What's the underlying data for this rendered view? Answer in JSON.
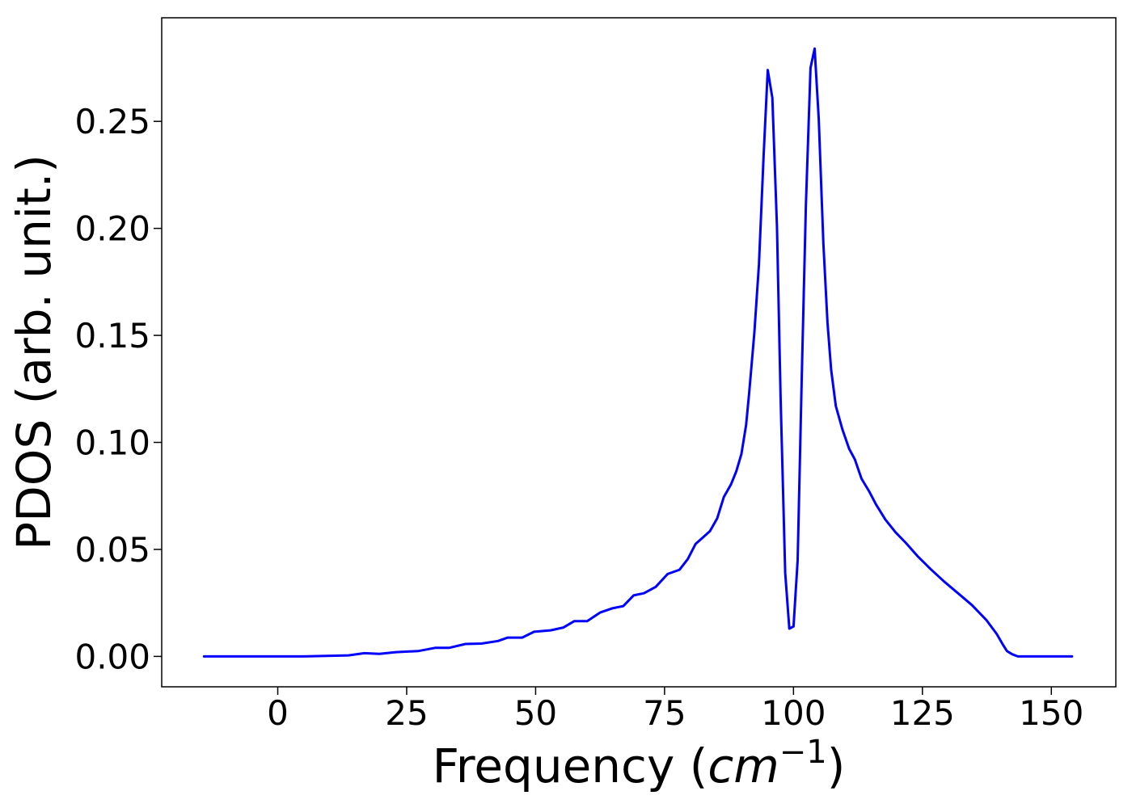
{
  "chart_data": {
    "type": "line",
    "title": "",
    "xlabel": "Frequency",
    "xlabel_unit": "cm",
    "xlabel_unit_exponent": "−1",
    "ylabel": "PDOS (arb. unit.)",
    "xlim": [
      -22.5,
      162.5
    ],
    "ylim": [
      -0.0142,
      0.2984
    ],
    "x_ticks": [
      0,
      25,
      50,
      75,
      100,
      125,
      150
    ],
    "x_tick_labels": [
      "0",
      "25",
      "50",
      "75",
      "100",
      "125",
      "150"
    ],
    "y_ticks": [
      0.0,
      0.05,
      0.1,
      0.15,
      0.2,
      0.25
    ],
    "y_tick_labels": [
      "0.00",
      "0.05",
      "0.10",
      "0.15",
      "0.20",
      "0.25"
    ],
    "grid": false,
    "legend": false,
    "series": [
      {
        "color": "#0000ff",
        "x": [
          -14.3,
          4.8,
          13.7,
          16.8,
          19.7,
          22.9,
          27.2,
          30.5,
          33.2,
          36.4,
          39.5,
          42.7,
          44.6,
          47.4,
          49.7,
          52.9,
          55.4,
          57.5,
          60.0,
          62.5,
          64.9,
          67.0,
          69.0,
          71.0,
          73.3,
          75.6,
          77.9,
          79.5,
          81.0,
          82.4,
          83.8,
          85.2,
          86.5,
          87.9,
          88.9,
          89.9,
          90.8,
          91.4,
          92.4,
          93.3,
          94.2,
          95.0,
          95.9,
          96.8,
          97.5,
          98.4,
          99.2,
          100.0,
          100.8,
          101.6,
          102.4,
          103.3,
          104.1,
          104.9,
          105.8,
          106.6,
          107.3,
          108.2,
          109.5,
          110.8,
          111.9,
          113.2,
          114.7,
          116.0,
          117.8,
          119.8,
          121.8,
          124.0,
          126.5,
          129.2,
          131.9,
          134.6,
          137.4,
          139.4,
          140.6,
          141.4,
          142.4,
          143.5,
          154.0
        ],
        "y": [
          0.0,
          0.0,
          0.0005,
          0.0015,
          0.0012,
          0.002,
          0.0025,
          0.004,
          0.004,
          0.0058,
          0.006,
          0.0072,
          0.0088,
          0.0088,
          0.0115,
          0.0122,
          0.0135,
          0.0165,
          0.0165,
          0.0205,
          0.0225,
          0.0235,
          0.0285,
          0.0295,
          0.0325,
          0.0385,
          0.0405,
          0.0455,
          0.0525,
          0.0555,
          0.0585,
          0.0645,
          0.0745,
          0.0805,
          0.0865,
          0.0945,
          0.108,
          0.123,
          0.151,
          0.183,
          0.234,
          0.274,
          0.261,
          0.201,
          0.121,
          0.039,
          0.013,
          0.014,
          0.045,
          0.131,
          0.211,
          0.275,
          0.284,
          0.251,
          0.193,
          0.156,
          0.134,
          0.117,
          0.106,
          0.097,
          0.092,
          0.083,
          0.077,
          0.071,
          0.064,
          0.058,
          0.053,
          0.047,
          0.041,
          0.035,
          0.0295,
          0.024,
          0.017,
          0.0105,
          0.0055,
          0.0025,
          0.001,
          0.0,
          0.0
        ]
      }
    ]
  }
}
